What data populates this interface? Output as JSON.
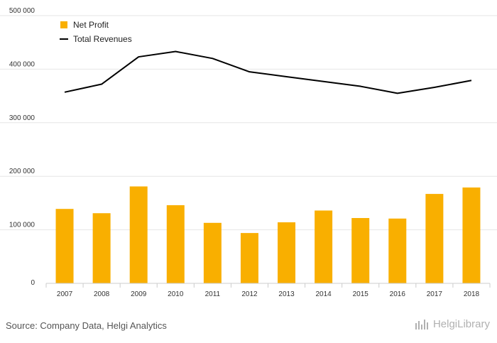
{
  "chart_data": {
    "type": "bar",
    "categories": [
      "2007",
      "2008",
      "2009",
      "2010",
      "2011",
      "2012",
      "2013",
      "2014",
      "2015",
      "2016",
      "2017",
      "2018"
    ],
    "series": [
      {
        "name": "Net Profit",
        "type": "bar",
        "color": "#F9AF00",
        "values": [
          139000,
          131000,
          181000,
          146000,
          113000,
          94000,
          114000,
          136000,
          122000,
          121000,
          167000,
          179000
        ]
      },
      {
        "name": "Total Revenues",
        "type": "line",
        "color": "#000000",
        "values": [
          357000,
          372000,
          423000,
          433000,
          420000,
          395000,
          386000,
          377000,
          368000,
          355000,
          366000,
          379000
        ]
      }
    ],
    "y_ticks": [
      "0",
      "100 000",
      "200 000",
      "300 000",
      "400 000",
      "500 000"
    ],
    "ylim": [
      0,
      500000
    ],
    "grid": true,
    "legend_position": "top-left"
  },
  "footer": {
    "source": "Source: Company Data, Helgi Analytics",
    "brand_text": "HelgiLibrary",
    "brand_icon": "helgi-logo-icon"
  }
}
